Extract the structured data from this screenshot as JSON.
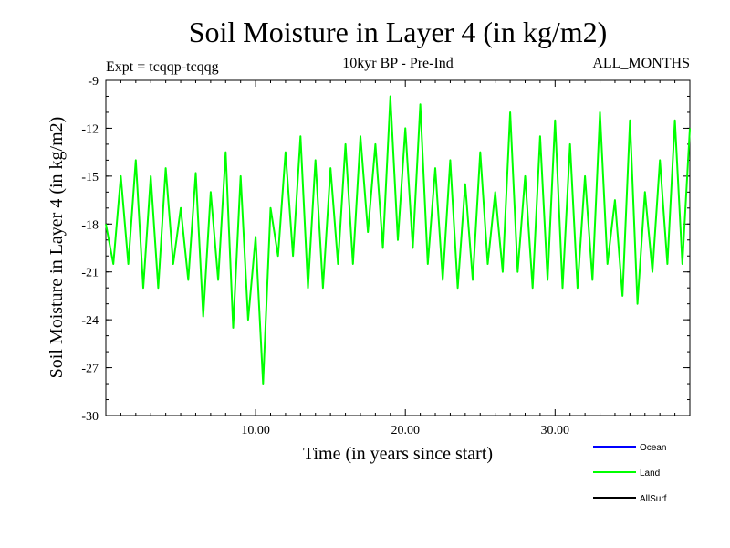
{
  "chart_data": {
    "type": "line",
    "title": "Soil Moisture in Layer 4 (in kg/m2)",
    "subtitle": "10kyr BP - Pre-Ind",
    "experiment": "Expt = tcqqp-tcqqg",
    "period": "ALL_MONTHS",
    "xlabel": "Time (in years since start)",
    "ylabel": "Soil Moisture in Layer 4 (in kg/m2)",
    "xlim": [
      0,
      39
    ],
    "ylim": [
      -30,
      -9
    ],
    "xticks": [
      10,
      20,
      30
    ],
    "xtick_labels": [
      "10.00",
      "20.00",
      "30.00"
    ],
    "yticks": [
      -9,
      -12,
      -15,
      -18,
      -21,
      -24,
      -27,
      -30
    ],
    "ytick_labels": [
      "-9",
      "-12",
      "-15",
      "-18",
      "-21",
      "-24",
      "-27",
      "-30"
    ],
    "legend": [
      {
        "name": "Ocean",
        "color": "#0000ff"
      },
      {
        "name": "Land",
        "color": "#00ff00"
      },
      {
        "name": "AllSurf",
        "color": "#000000"
      }
    ],
    "series": [
      {
        "name": "Land",
        "color": "#00ff00",
        "x": [
          0,
          0.5,
          1.0,
          1.5,
          2.0,
          2.5,
          3.0,
          3.5,
          4.0,
          4.5,
          5.0,
          5.5,
          6.0,
          6.5,
          7.0,
          7.5,
          8.0,
          8.5,
          9.0,
          9.5,
          10.0,
          10.5,
          11.0,
          11.5,
          12.0,
          12.5,
          13.0,
          13.5,
          14.0,
          14.5,
          15.0,
          15.5,
          16.0,
          16.5,
          17.0,
          17.5,
          18.0,
          18.5,
          19.0,
          19.5,
          20.0,
          20.5,
          21.0,
          21.5,
          22.0,
          22.5,
          23.0,
          23.5,
          24.0,
          24.5,
          25.0,
          25.5,
          26.0,
          26.5,
          27.0,
          27.5,
          28.0,
          28.5,
          29.0,
          29.5,
          30.0,
          30.5,
          31.0,
          31.5,
          32.0,
          32.5,
          33.0,
          33.5,
          34.0,
          34.5,
          35.0,
          35.5,
          36.0,
          36.5,
          37.0,
          37.5,
          38.0,
          38.5,
          39.0
        ],
        "values": [
          -18.0,
          -20.5,
          -15.0,
          -20.5,
          -14.0,
          -22.0,
          -15.0,
          -22.0,
          -14.5,
          -20.5,
          -17.0,
          -21.5,
          -14.8,
          -23.8,
          -16.0,
          -21.5,
          -13.5,
          -24.5,
          -15.0,
          -24.0,
          -18.8,
          -28.0,
          -17.0,
          -20.0,
          -13.5,
          -20.0,
          -12.5,
          -22.0,
          -14.0,
          -22.0,
          -14.5,
          -20.5,
          -13.0,
          -20.5,
          -12.5,
          -18.5,
          -13.0,
          -19.5,
          -10.0,
          -19.0,
          -12.0,
          -19.5,
          -10.5,
          -20.5,
          -14.5,
          -21.5,
          -14.0,
          -22.0,
          -15.5,
          -21.5,
          -13.5,
          -20.5,
          -16.0,
          -21.0,
          -11.0,
          -21.0,
          -15.0,
          -22.0,
          -12.5,
          -21.5,
          -11.5,
          -22.0,
          -13.0,
          -22.0,
          -15.0,
          -21.5,
          -11.0,
          -20.5,
          -16.5,
          -22.5,
          -11.5,
          -23.0,
          -16.0,
          -21.0,
          -14.0,
          -20.5,
          -11.5,
          -20.5,
          -12.0
        ]
      }
    ]
  }
}
